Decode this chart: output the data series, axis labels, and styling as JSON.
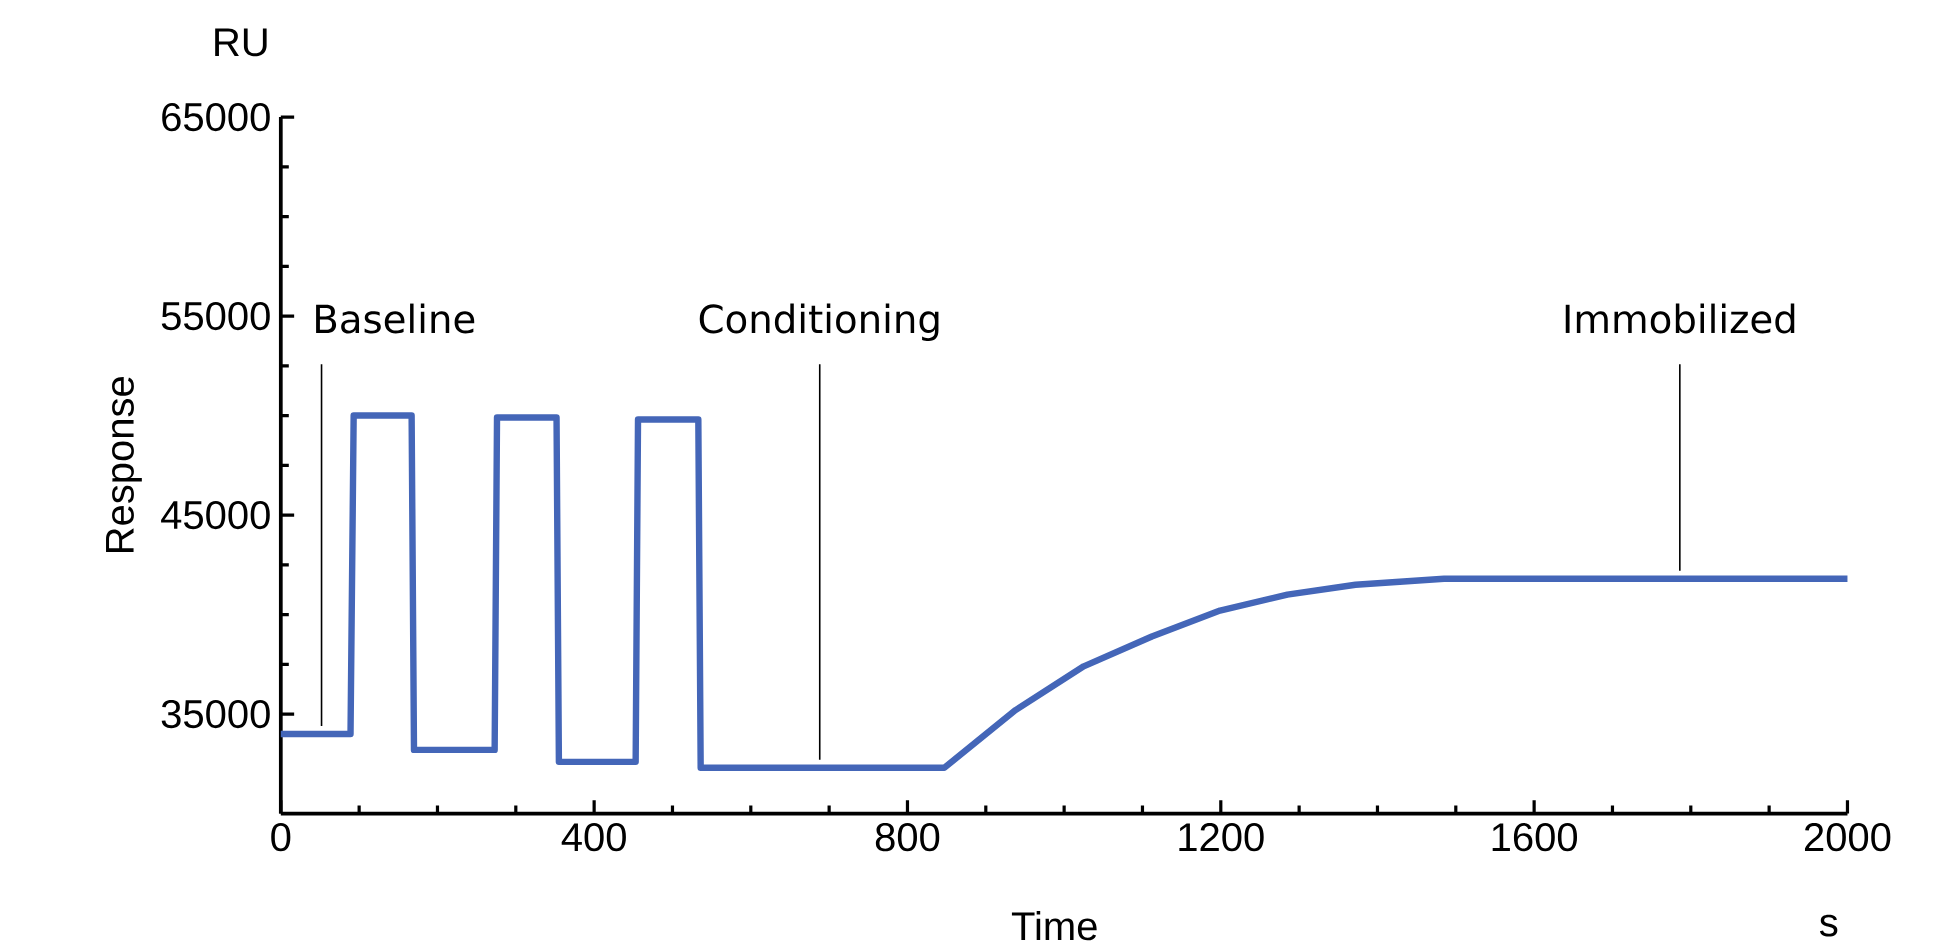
{
  "chart_data": {
    "type": "line",
    "xlabel": "Time",
    "ylabel": "Response",
    "x": [
      0,
      89,
      93,
      167,
      170,
      273,
      276,
      352,
      355,
      453,
      456,
      533,
      536,
      847,
      938,
      1025,
      1112,
      1199,
      1285,
      1372,
      1485,
      2000
    ],
    "series": [
      {
        "color": "#4466b8",
        "values": [
          34000,
          34000,
          50000,
          50000,
          33200,
          33200,
          49900,
          49900,
          32600,
          32600,
          49800,
          49800,
          32300,
          32300,
          35200,
          37400,
          38900,
          40200,
          41000,
          41500,
          41800,
          41800
        ]
      }
    ],
    "xlim": [
      0,
      2000
    ],
    "ylim": [
      30000,
      65000
    ],
    "xticks": [
      0,
      400,
      800,
      1200,
      1600,
      2000
    ],
    "yticks": [
      35000,
      45000,
      55000,
      65000
    ],
    "grid": false,
    "marker": "none",
    "line_style": "solid",
    "annotations": [
      {
        "text": "Baseline",
        "x": 52,
        "y": 34000
      },
      {
        "text": "Conditioning",
        "x": 688,
        "y": 32300
      },
      {
        "text": "Immobilized",
        "x": 1786,
        "y": 41800
      },
      "RU",
      "s"
    ]
  }
}
